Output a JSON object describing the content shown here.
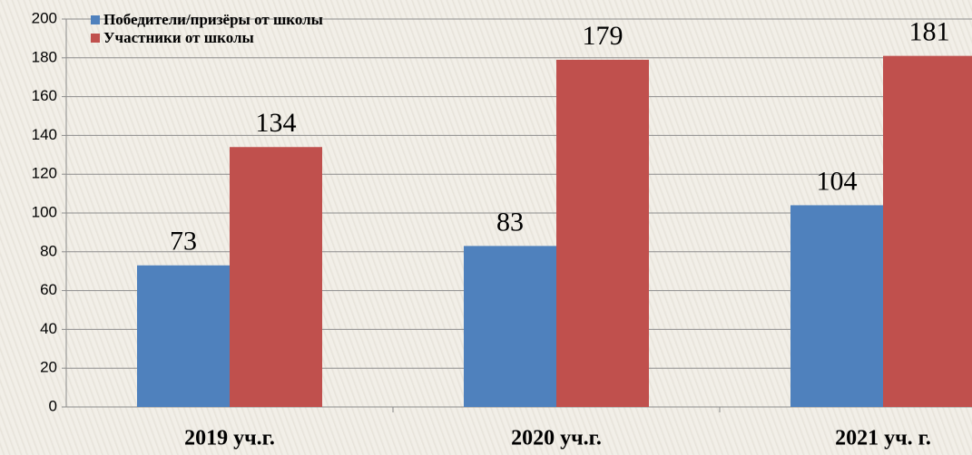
{
  "chart_data": {
    "type": "bar",
    "categories": [
      "2019 уч.г.",
      "2020 уч.г.",
      "2021 уч. г."
    ],
    "series": [
      {
        "name": "Победители/призёры от школы",
        "color": "#4f81bd",
        "values": [
          73,
          83,
          104
        ]
      },
      {
        "name": "Участники от школы",
        "color": "#c0504d",
        "values": [
          134,
          179,
          181
        ]
      }
    ],
    "ylim": [
      0,
      200
    ],
    "yticks": [
      0,
      20,
      40,
      60,
      80,
      100,
      120,
      140,
      160,
      180,
      200
    ],
    "grid": true
  }
}
